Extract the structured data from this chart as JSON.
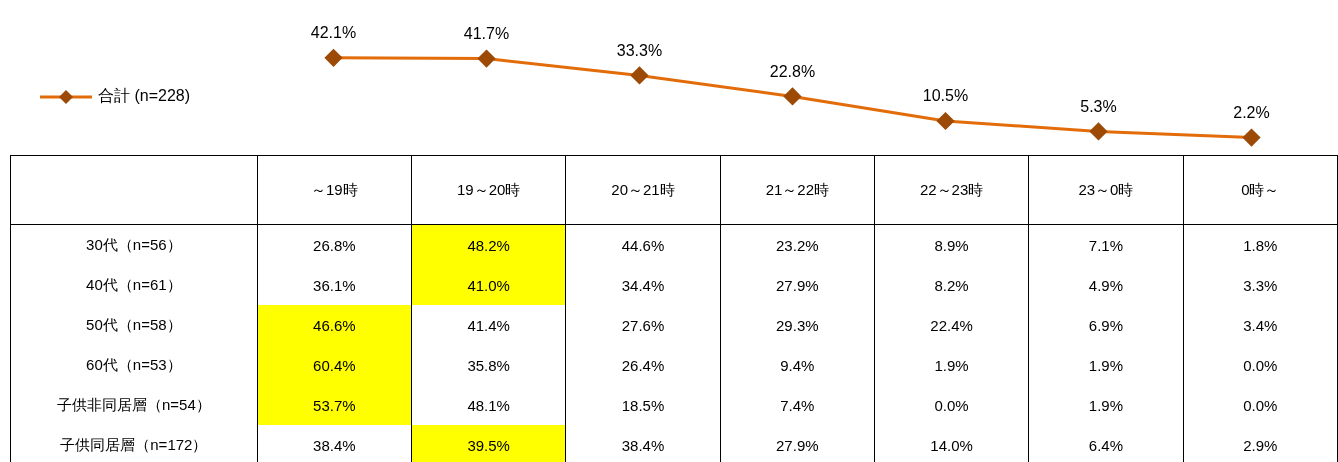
{
  "chart_data": [
    {
      "type": "line",
      "categories": [
        null,
        null,
        null,
        null,
        null,
        null,
        null
      ],
      "tick_labels": false,
      "legend": "left",
      "marker": "diamond",
      "series": [
        {
          "name": "合計 (n=228)",
          "color": "#e36c0a",
          "values": [
            42.1,
            41.7,
            33.3,
            22.8,
            10.5,
            5.3,
            2.2
          ],
          "value_labels": [
            "42.1%",
            "41.7%",
            "33.3%",
            "22.8%",
            "10.5%",
            "5.3%",
            "2.2%"
          ]
        }
      ]
    },
    {
      "type": "heatmap",
      "categories": [
        "～19時",
        "19～20時",
        "20～21時",
        "21～22時",
        "22～23時",
        "23～0時",
        "0時～"
      ],
      "y_categories": [
        "30代（n=56）",
        "40代（n=61）",
        "50代（n=58）",
        "60代（n=53）",
        "子供非同居層（n=54）",
        "子供同居層（n=172）"
      ],
      "cells": [
        [
          26.8,
          48.2,
          44.6,
          23.2,
          8.9,
          7.1,
          1.8
        ],
        [
          36.1,
          41.0,
          34.4,
          27.9,
          8.2,
          4.9,
          3.3
        ],
        [
          46.6,
          41.4,
          27.6,
          29.3,
          22.4,
          6.9,
          3.4
        ],
        [
          60.4,
          35.8,
          26.4,
          9.4,
          1.9,
          1.9,
          0.0
        ],
        [
          53.7,
          48.1,
          18.5,
          7.4,
          0.0,
          1.9,
          0.0
        ],
        [
          38.4,
          39.5,
          38.4,
          27.9,
          14.0,
          6.4,
          2.9
        ]
      ],
      "cell_labels": [
        [
          "26.8%",
          "48.2%",
          "44.6%",
          "23.2%",
          "8.9%",
          "7.1%",
          "1.8%"
        ],
        [
          "36.1%",
          "41.0%",
          "34.4%",
          "27.9%",
          "8.2%",
          "4.9%",
          "3.3%"
        ],
        [
          "46.6%",
          "41.4%",
          "27.6%",
          "29.3%",
          "22.4%",
          "6.9%",
          "3.4%"
        ],
        [
          "60.4%",
          "35.8%",
          "26.4%",
          "9.4%",
          "1.9%",
          "1.9%",
          "0.0%"
        ],
        [
          "53.7%",
          "48.1%",
          "18.5%",
          "7.4%",
          "0.0%",
          "1.9%",
          "0.0%"
        ],
        [
          "38.4%",
          "39.5%",
          "38.4%",
          "27.9%",
          "14.0%",
          "6.4%",
          "2.9%"
        ]
      ]
    }
  ]
}
